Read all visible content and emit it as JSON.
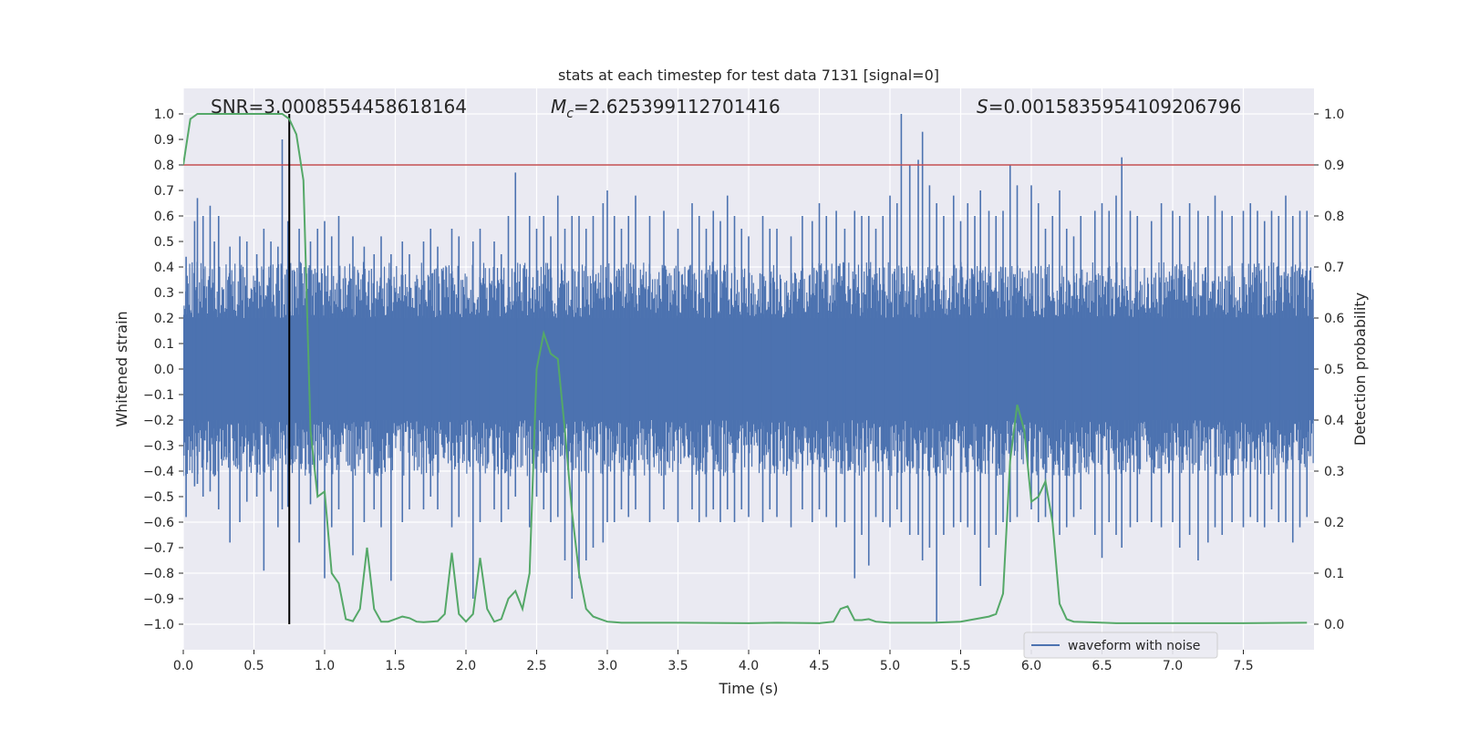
{
  "chart_data": {
    "type": "line",
    "title": "stats at each timestep for test data 7131 [signal=0]",
    "xlabel": "Time (s)",
    "ylabel_left": "Whitened strain",
    "ylabel_right": "Detection probability",
    "xlim": [
      0,
      8
    ],
    "ylim_left": [
      -1.1,
      1.1
    ],
    "ylim_right": [
      -0.05,
      1.05
    ],
    "x_ticks": [
      0.0,
      0.5,
      1.0,
      1.5,
      2.0,
      2.5,
      3.0,
      3.5,
      4.0,
      4.5,
      5.0,
      5.5,
      6.0,
      6.5,
      7.0,
      7.5
    ],
    "x_tick_labels": [
      "0.0",
      "0.5",
      "1.0",
      "1.5",
      "2.0",
      "2.5",
      "3.0",
      "3.5",
      "4.0",
      "4.5",
      "5.0",
      "5.5",
      "6.0",
      "6.5",
      "7.0",
      "7.5"
    ],
    "y_left_ticks": [
      1.0,
      0.9,
      0.8,
      0.7,
      0.6,
      0.5,
      0.4,
      0.3,
      0.2,
      0.1,
      0.0,
      -0.1,
      -0.2,
      -0.3,
      -0.4,
      -0.5,
      -0.6,
      -0.7,
      -0.8,
      -0.9,
      -1.0
    ],
    "y_left_tick_labels": [
      "1.0",
      "0.9",
      "0.8",
      "0.7",
      "0.6",
      "0.5",
      "0.4",
      "0.3",
      "0.2",
      "0.1",
      "0.0",
      "−0.1",
      "−0.2",
      "−0.3",
      "−0.4",
      "−0.5",
      "−0.6",
      "−0.7",
      "−0.8",
      "−0.9",
      "−1.0"
    ],
    "y_right_ticks": [
      1.0,
      0.9,
      0.8,
      0.7,
      0.6,
      0.5,
      0.4,
      0.3,
      0.2,
      0.1,
      0.0
    ],
    "y_right_tick_labels": [
      "1.0",
      "0.9",
      "0.8",
      "0.7",
      "0.6",
      "0.5",
      "0.4",
      "0.3",
      "0.2",
      "0.1",
      "0.0"
    ],
    "annotations": {
      "snr": "SNR=3.0008554458618164",
      "mc_symbol": "M",
      "mc_sub": "c",
      "mc_value": "=2.625399112701416",
      "s_symbol": "S",
      "s_value": "=0.0015835954109206796"
    },
    "legend": {
      "label": "waveform with noise",
      "loc": "lower-right"
    },
    "threshold": {
      "axis": "left",
      "y": 0.8,
      "color": "#c44e52"
    },
    "marker_line": {
      "x": 0.75,
      "y_range": [
        -1.0,
        1.0
      ],
      "color": "#000000"
    },
    "waveform": {
      "name": "waveform with noise",
      "color": "#4c72b0",
      "axis": "left",
      "dense_band": [
        -0.2,
        0.2
      ],
      "spikes": [
        [
          0.02,
          0.44,
          -0.58
        ],
        [
          0.08,
          0.58,
          -0.46
        ],
        [
          0.1,
          0.67,
          -0.45
        ],
        [
          0.14,
          0.6,
          -0.5
        ],
        [
          0.19,
          0.64,
          -0.48
        ],
        [
          0.22,
          0.5,
          -0.42
        ],
        [
          0.25,
          0.6,
          -0.55
        ],
        [
          0.33,
          0.48,
          -0.68
        ],
        [
          0.4,
          0.52,
          -0.6
        ],
        [
          0.45,
          0.5,
          -0.52
        ],
        [
          0.52,
          0.45,
          -0.5
        ],
        [
          0.57,
          0.55,
          -0.79
        ],
        [
          0.62,
          0.5,
          -0.48
        ],
        [
          0.67,
          0.48,
          -0.62
        ],
        [
          0.7,
          0.9,
          -0.55
        ],
        [
          0.74,
          0.58,
          -0.54
        ],
        [
          0.82,
          0.55,
          -0.68
        ],
        [
          0.9,
          0.5,
          -0.53
        ],
        [
          0.95,
          0.55,
          -0.5
        ],
        [
          1.0,
          0.58,
          -0.82
        ],
        [
          1.05,
          0.52,
          -0.62
        ],
        [
          1.1,
          0.6,
          -0.55
        ],
        [
          1.2,
          0.52,
          -0.73
        ],
        [
          1.28,
          0.48,
          -0.6
        ],
        [
          1.35,
          0.45,
          -0.55
        ],
        [
          1.4,
          0.52,
          -0.62
        ],
        [
          1.47,
          0.45,
          -0.83
        ],
        [
          1.55,
          0.5,
          -0.6
        ],
        [
          1.6,
          0.45,
          -0.55
        ],
        [
          1.7,
          0.5,
          -0.55
        ],
        [
          1.75,
          0.55,
          -0.5
        ],
        [
          1.8,
          0.48,
          -0.55
        ],
        [
          1.9,
          0.55,
          -0.62
        ],
        [
          1.95,
          0.52,
          -0.58
        ],
        [
          2.05,
          0.5,
          -0.9
        ],
        [
          2.1,
          0.55,
          -0.6
        ],
        [
          2.2,
          0.5,
          -0.55
        ],
        [
          2.25,
          0.45,
          -0.6
        ],
        [
          2.3,
          0.6,
          -0.55
        ],
        [
          2.35,
          0.77,
          -0.5
        ],
        [
          2.45,
          0.6,
          -0.62
        ],
        [
          2.5,
          0.55,
          -0.5
        ],
        [
          2.55,
          0.6,
          -0.55
        ],
        [
          2.6,
          0.52,
          -0.6
        ],
        [
          2.65,
          0.68,
          -0.58
        ],
        [
          2.7,
          0.55,
          -0.75
        ],
        [
          2.75,
          0.6,
          -0.9
        ],
        [
          2.8,
          0.6,
          -0.82
        ],
        [
          2.85,
          0.55,
          -0.75
        ],
        [
          2.9,
          0.6,
          -0.7
        ],
        [
          2.97,
          0.65,
          -0.68
        ],
        [
          3.0,
          0.7,
          -0.6
        ],
        [
          3.05,
          0.6,
          -0.6
        ],
        [
          3.1,
          0.55,
          -0.55
        ],
        [
          3.15,
          0.6,
          -0.58
        ],
        [
          3.2,
          0.68,
          -0.55
        ],
        [
          3.3,
          0.6,
          -0.6
        ],
        [
          3.4,
          0.62,
          -0.55
        ],
        [
          3.5,
          0.55,
          -0.6
        ],
        [
          3.6,
          0.65,
          -0.55
        ],
        [
          3.65,
          0.6,
          -0.6
        ],
        [
          3.7,
          0.55,
          -0.58
        ],
        [
          3.75,
          0.62,
          -0.55
        ],
        [
          3.8,
          0.58,
          -0.6
        ],
        [
          3.85,
          0.68,
          -0.55
        ],
        [
          3.9,
          0.6,
          -0.6
        ],
        [
          3.95,
          0.55,
          -0.55
        ],
        [
          4.0,
          0.52,
          -0.58
        ],
        [
          4.1,
          0.6,
          -0.6
        ],
        [
          4.15,
          0.55,
          -0.55
        ],
        [
          4.2,
          0.55,
          -0.58
        ],
        [
          4.3,
          0.52,
          -0.62
        ],
        [
          4.38,
          0.6,
          -0.55
        ],
        [
          4.45,
          0.58,
          -0.6
        ],
        [
          4.5,
          0.65,
          -0.55
        ],
        [
          4.55,
          0.6,
          -0.58
        ],
        [
          4.62,
          0.62,
          -0.62
        ],
        [
          4.68,
          0.55,
          -0.6
        ],
        [
          4.75,
          0.62,
          -0.82
        ],
        [
          4.8,
          0.6,
          -0.65
        ],
        [
          4.85,
          0.6,
          -0.77
        ],
        [
          4.9,
          0.55,
          -0.58
        ],
        [
          4.95,
          0.6,
          -0.6
        ],
        [
          5.0,
          0.68,
          -0.62
        ],
        [
          5.05,
          0.65,
          -0.55
        ],
        [
          5.08,
          1.0,
          -0.6
        ],
        [
          5.14,
          0.8,
          -0.65
        ],
        [
          5.2,
          0.82,
          -0.65
        ],
        [
          5.23,
          0.93,
          -0.75
        ],
        [
          5.28,
          0.72,
          -0.7
        ],
        [
          5.33,
          0.65,
          -0.99
        ],
        [
          5.38,
          0.6,
          -0.65
        ],
        [
          5.45,
          0.68,
          -0.62
        ],
        [
          5.5,
          0.58,
          -0.6
        ],
        [
          5.55,
          0.65,
          -0.62
        ],
        [
          5.6,
          0.6,
          -0.65
        ],
        [
          5.64,
          0.7,
          -0.85
        ],
        [
          5.7,
          0.62,
          -0.7
        ],
        [
          5.75,
          0.6,
          -0.65
        ],
        [
          5.8,
          0.62,
          -0.6
        ],
        [
          5.85,
          0.8,
          -0.6
        ],
        [
          5.9,
          0.72,
          -0.58
        ],
        [
          6.0,
          0.72,
          -0.55
        ],
        [
          6.05,
          0.65,
          -0.6
        ],
        [
          6.1,
          0.55,
          -0.58
        ],
        [
          6.15,
          0.6,
          -0.6
        ],
        [
          6.2,
          0.7,
          -0.65
        ],
        [
          6.25,
          0.55,
          -0.62
        ],
        [
          6.3,
          0.52,
          -0.58
        ],
        [
          6.35,
          0.6,
          -0.55
        ],
        [
          6.45,
          0.62,
          -0.65
        ],
        [
          6.5,
          0.65,
          -0.74
        ],
        [
          6.55,
          0.62,
          -0.6
        ],
        [
          6.6,
          0.68,
          -0.65
        ],
        [
          6.64,
          0.83,
          -0.7
        ],
        [
          6.7,
          0.62,
          -0.62
        ],
        [
          6.75,
          0.6,
          -0.6
        ],
        [
          6.85,
          0.58,
          -0.6
        ],
        [
          6.92,
          0.65,
          -0.62
        ],
        [
          7.0,
          0.62,
          -0.6
        ],
        [
          7.05,
          0.6,
          -0.7
        ],
        [
          7.12,
          0.65,
          -0.65
        ],
        [
          7.18,
          0.62,
          -0.75
        ],
        [
          7.25,
          0.6,
          -0.68
        ],
        [
          7.3,
          0.68,
          -0.62
        ],
        [
          7.35,
          0.62,
          -0.65
        ],
        [
          7.42,
          0.6,
          -0.6
        ],
        [
          7.5,
          0.62,
          -0.62
        ],
        [
          7.55,
          0.65,
          -0.58
        ],
        [
          7.6,
          0.62,
          -0.6
        ],
        [
          7.65,
          0.58,
          -0.62
        ],
        [
          7.7,
          0.62,
          -0.55
        ],
        [
          7.75,
          0.6,
          -0.6
        ],
        [
          7.8,
          0.68,
          -0.6
        ],
        [
          7.85,
          0.6,
          -0.68
        ],
        [
          7.9,
          0.62,
          -0.62
        ],
        [
          7.95,
          0.62,
          -0.58
        ]
      ]
    },
    "detection_probability": {
      "color": "#55a868",
      "axis": "right",
      "x": [
        0.0,
        0.05,
        0.1,
        0.2,
        0.3,
        0.4,
        0.5,
        0.6,
        0.7,
        0.75,
        0.8,
        0.85,
        0.9,
        0.95,
        1.0,
        1.05,
        1.1,
        1.15,
        1.2,
        1.25,
        1.3,
        1.35,
        1.4,
        1.45,
        1.5,
        1.55,
        1.6,
        1.65,
        1.7,
        1.75,
        1.8,
        1.85,
        1.9,
        1.95,
        2.0,
        2.05,
        2.1,
        2.15,
        2.2,
        2.25,
        2.3,
        2.35,
        2.4,
        2.45,
        2.5,
        2.55,
        2.6,
        2.65,
        2.7,
        2.75,
        2.8,
        2.85,
        2.9,
        2.95,
        3.0,
        3.05,
        3.1,
        3.15,
        3.2,
        3.3,
        3.5,
        4.0,
        4.2,
        4.5,
        4.6,
        4.65,
        4.7,
        4.75,
        4.8,
        4.85,
        4.9,
        5.0,
        5.3,
        5.5,
        5.7,
        5.75,
        5.8,
        5.85,
        5.9,
        5.95,
        6.0,
        6.05,
        6.1,
        6.15,
        6.2,
        6.25,
        6.3,
        6.4,
        6.6,
        7.5,
        7.95
      ],
      "y": [
        0.9,
        0.99,
        1.0,
        1.0,
        1.0,
        1.0,
        1.0,
        1.0,
        1.0,
        0.99,
        0.96,
        0.87,
        0.38,
        0.25,
        0.26,
        0.1,
        0.08,
        0.01,
        0.006,
        0.03,
        0.15,
        0.03,
        0.005,
        0.005,
        0.01,
        0.015,
        0.012,
        0.005,
        0.004,
        0.005,
        0.006,
        0.02,
        0.14,
        0.02,
        0.005,
        0.02,
        0.13,
        0.03,
        0.005,
        0.01,
        0.05,
        0.065,
        0.03,
        0.1,
        0.5,
        0.57,
        0.53,
        0.52,
        0.38,
        0.22,
        0.1,
        0.03,
        0.015,
        0.01,
        0.005,
        0.004,
        0.003,
        0.003,
        0.003,
        0.003,
        0.003,
        0.002,
        0.003,
        0.002,
        0.005,
        0.03,
        0.035,
        0.008,
        0.008,
        0.01,
        0.005,
        0.003,
        0.003,
        0.005,
        0.015,
        0.02,
        0.06,
        0.32,
        0.43,
        0.38,
        0.24,
        0.25,
        0.28,
        0.2,
        0.04,
        0.01,
        0.005,
        0.004,
        0.002,
        0.002,
        0.003
      ]
    }
  }
}
